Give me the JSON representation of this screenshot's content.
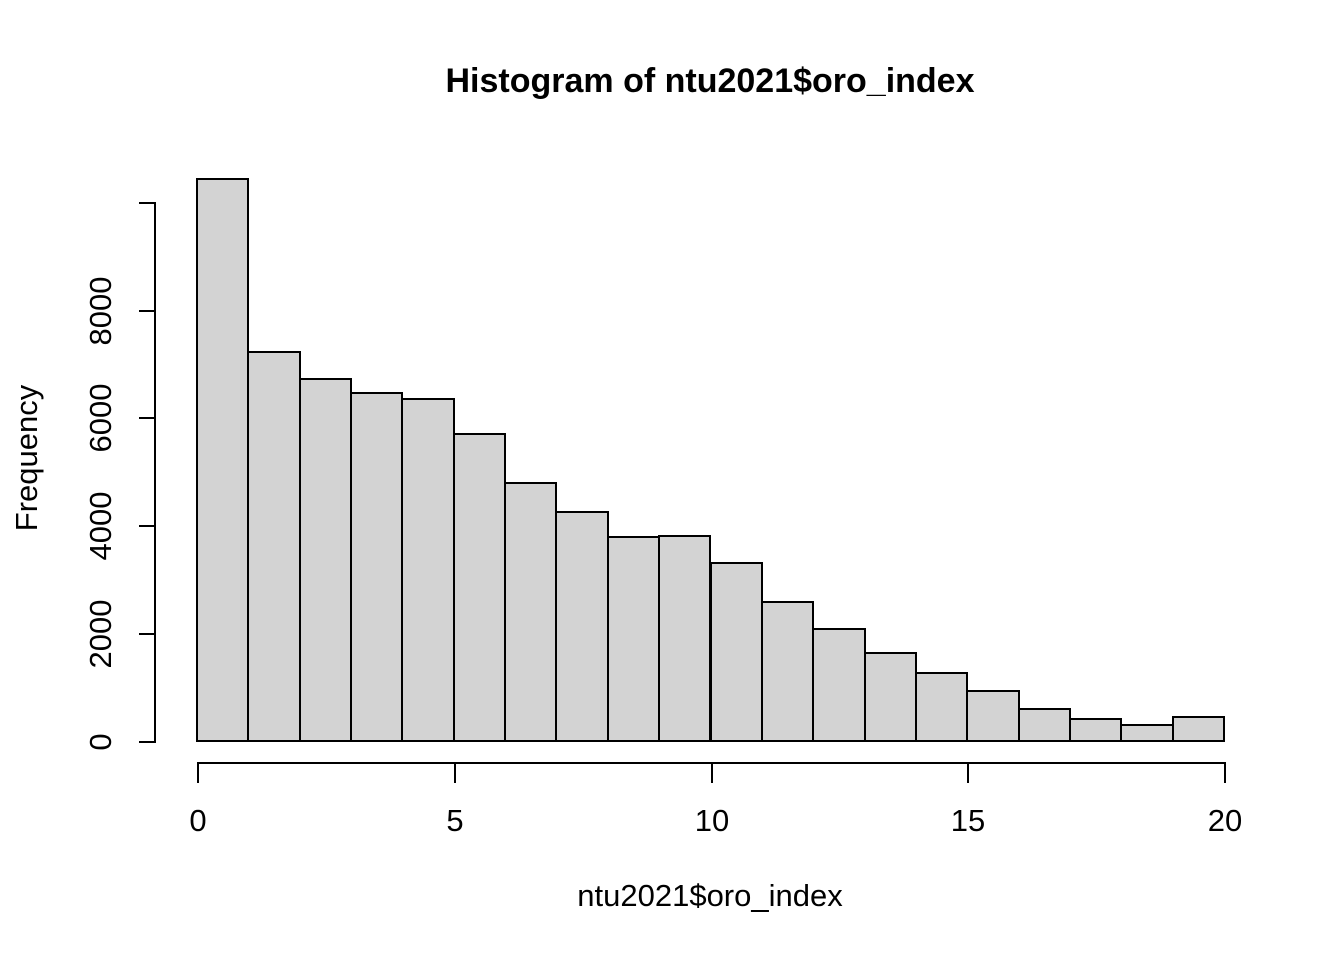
{
  "title": "Histogram of ntu2021$oro_index",
  "chart_data": {
    "type": "bar",
    "subtype": "histogram",
    "title": "Histogram of ntu2021$oro_index",
    "xlabel": "ntu2021$oro_index",
    "ylabel": "Frequency",
    "bin_edges": [
      0,
      1,
      2,
      3,
      4,
      5,
      6,
      7,
      8,
      9,
      10,
      11,
      12,
      13,
      14,
      15,
      16,
      17,
      18,
      19,
      20
    ],
    "values": [
      10420,
      7220,
      6710,
      6450,
      6350,
      5690,
      4780,
      4250,
      3780,
      3810,
      3300,
      2570,
      2080,
      1630,
      1260,
      930,
      590,
      400,
      290,
      450
    ],
    "x_ticks": [
      0,
      5,
      10,
      15,
      20
    ],
    "y_ticks_labeled": [
      0,
      2000,
      4000,
      6000,
      8000
    ],
    "y_ticks_unlabeled": [
      10000
    ],
    "xlim": [
      0,
      20
    ],
    "ylim": [
      0,
      10420
    ],
    "grid": false,
    "legend": "none",
    "bar_fill": "#d3d3d3",
    "bar_border": "#000000",
    "text_color": "#000000",
    "background": "#ffffff"
  }
}
